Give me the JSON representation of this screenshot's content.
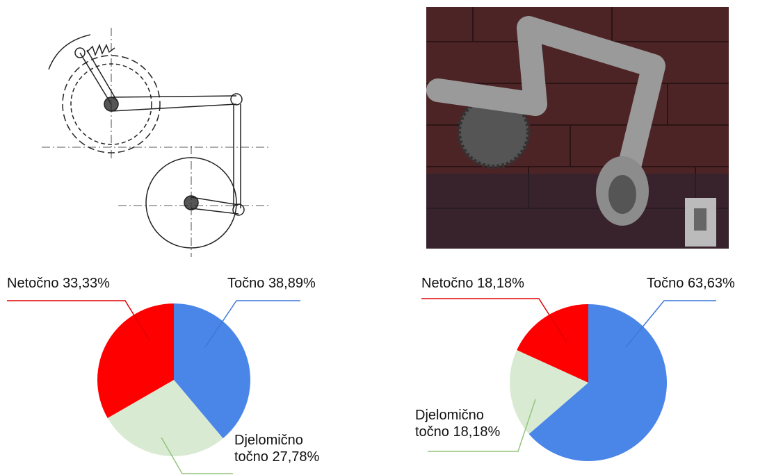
{
  "chart_data": [
    {
      "type": "pie",
      "categories": [
        "Točno",
        "Djelomično točno",
        "Netočno"
      ],
      "values": [
        38.89,
        27.78,
        33.33
      ],
      "value_labels": [
        "38,89%",
        "27,78%",
        "33,33%"
      ],
      "colors": [
        "#4a86e8",
        "#d9ead3",
        "#ff0000"
      ]
    },
    {
      "type": "pie",
      "categories": [
        "Točno",
        "Djelomično točno",
        "Netočno"
      ],
      "values": [
        63.63,
        18.18,
        18.18
      ],
      "value_labels": [
        "63,63%",
        "18,18%",
        "18,18%"
      ],
      "colors": [
        "#4a86e8",
        "#d9ead3",
        "#ff0000"
      ]
    }
  ]
}
